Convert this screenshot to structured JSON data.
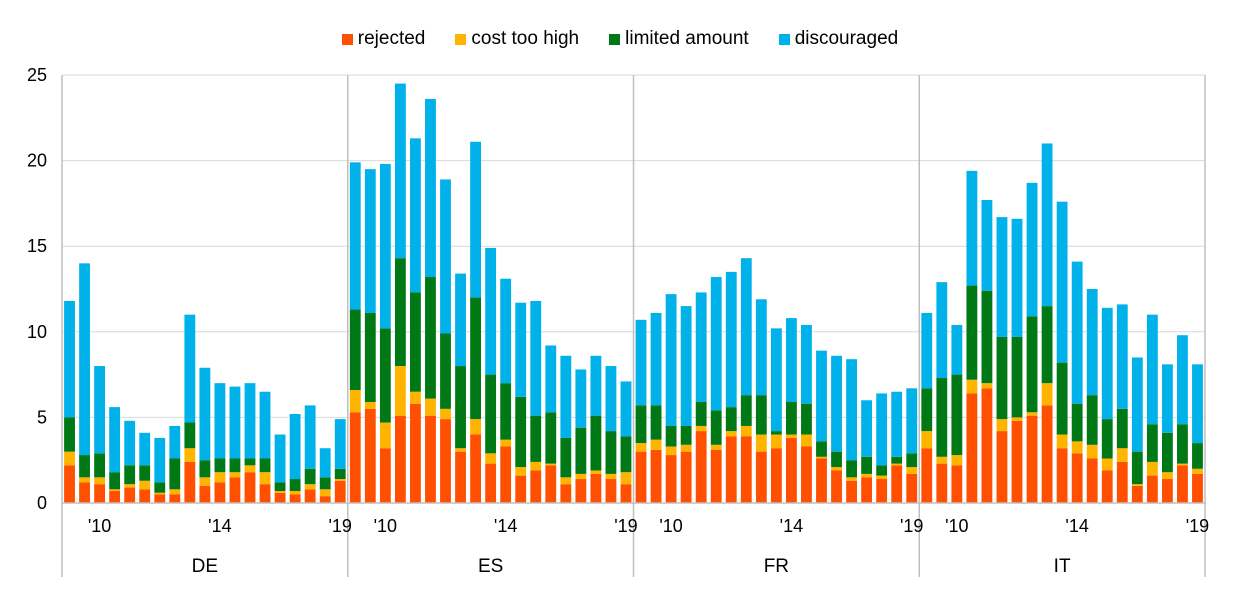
{
  "chart_data": {
    "type": "bar",
    "stacked": true,
    "ylim": [
      0,
      25
    ],
    "yticks": [
      "0",
      "5",
      "10",
      "15",
      "20",
      "25"
    ],
    "grid": true,
    "legend_position": "top-center",
    "series": [
      {
        "name": "rejected",
        "color": "#ff4f00"
      },
      {
        "name": "cost too high",
        "color": "#ffb400"
      },
      {
        "name": "limited amount",
        "color": "#007816"
      },
      {
        "name": "discouraged",
        "color": "#00b1ea"
      }
    ],
    "panels": [
      {
        "name": "DE",
        "tick_labels": [
          {
            "index": 2,
            "label": "'10"
          },
          {
            "index": 10,
            "label": "'14"
          },
          {
            "index": 18,
            "label": "'19"
          }
        ],
        "values": {
          "rejected": [
            2.2,
            1.2,
            1.1,
            0.7,
            0.9,
            0.8,
            0.5,
            0.5,
            2.4,
            1.0,
            1.2,
            1.5,
            1.8,
            1.1,
            0.6,
            0.5,
            0.8,
            0.4,
            1.3
          ],
          "cost too high": [
            0.8,
            0.3,
            0.4,
            0.1,
            0.2,
            0.5,
            0.1,
            0.3,
            0.8,
            0.5,
            0.6,
            0.3,
            0.4,
            0.7,
            0.1,
            0.2,
            0.3,
            0.4,
            0.1
          ],
          "limited amount": [
            2.0,
            1.3,
            1.4,
            1.0,
            1.1,
            0.9,
            0.6,
            1.8,
            1.5,
            1.0,
            0.8,
            0.8,
            0.4,
            0.8,
            0.5,
            0.7,
            0.9,
            0.7,
            0.6
          ],
          "discouraged": [
            6.8,
            11.2,
            5.1,
            3.8,
            2.6,
            1.9,
            2.6,
            1.9,
            6.3,
            5.4,
            4.4,
            4.2,
            4.4,
            3.9,
            2.8,
            3.8,
            3.7,
            1.7,
            2.9
          ]
        }
      },
      {
        "name": "ES",
        "tick_labels": [
          {
            "index": 2,
            "label": "'10"
          },
          {
            "index": 10,
            "label": "'14"
          },
          {
            "index": 18,
            "label": "'19"
          }
        ],
        "values": {
          "rejected": [
            5.3,
            5.5,
            3.2,
            5.1,
            5.8,
            5.1,
            4.9,
            3.0,
            4.0,
            2.3,
            3.3,
            1.6,
            1.9,
            2.2,
            1.1,
            1.4,
            1.7,
            1.4,
            1.1
          ],
          "cost too high": [
            1.3,
            0.4,
            1.5,
            2.9,
            0.7,
            1.0,
            0.6,
            0.2,
            0.9,
            0.6,
            0.4,
            0.5,
            0.5,
            0.1,
            0.4,
            0.3,
            0.2,
            0.3,
            0.7
          ],
          "limited amount": [
            4.7,
            5.2,
            5.5,
            6.3,
            5.8,
            7.1,
            4.4,
            4.8,
            7.1,
            4.6,
            3.3,
            4.1,
            2.7,
            3.0,
            2.3,
            2.7,
            3.2,
            2.5,
            2.1
          ],
          "discouraged": [
            8.6,
            8.4,
            9.6,
            10.2,
            9.0,
            10.4,
            9.0,
            5.4,
            9.1,
            7.4,
            6.1,
            5.5,
            6.7,
            3.9,
            4.8,
            3.4,
            3.5,
            3.8,
            3.2
          ]
        }
      },
      {
        "name": "FR",
        "tick_labels": [
          {
            "index": 2,
            "label": "'10"
          },
          {
            "index": 10,
            "label": "'14"
          },
          {
            "index": 18,
            "label": "'19"
          }
        ],
        "values": {
          "rejected": [
            3.0,
            3.1,
            2.8,
            3.0,
            4.2,
            3.1,
            3.9,
            3.9,
            3.0,
            3.2,
            3.8,
            3.3,
            2.6,
            1.9,
            1.3,
            1.5,
            1.4,
            2.2,
            1.7
          ],
          "cost too high": [
            0.5,
            0.6,
            0.5,
            0.4,
            0.3,
            0.3,
            0.3,
            0.6,
            1.0,
            0.8,
            0.2,
            0.7,
            0.1,
            0.2,
            0.2,
            0.2,
            0.2,
            0.1,
            0.4
          ],
          "limited amount": [
            2.2,
            2.0,
            1.2,
            1.1,
            1.4,
            2.0,
            1.4,
            1.8,
            2.3,
            0.2,
            1.9,
            1.8,
            0.9,
            0.9,
            1.0,
            1.0,
            0.6,
            0.4,
            0.8
          ],
          "discouraged": [
            5.0,
            5.4,
            7.7,
            7.0,
            6.4,
            7.8,
            7.9,
            8.0,
            5.6,
            6.0,
            4.9,
            4.6,
            5.3,
            5.6,
            5.9,
            3.3,
            4.2,
            3.8,
            3.8
          ]
        }
      },
      {
        "name": "IT",
        "tick_labels": [
          {
            "index": 2,
            "label": "'10"
          },
          {
            "index": 10,
            "label": "'14"
          },
          {
            "index": 18,
            "label": "'19"
          }
        ],
        "values": {
          "rejected": [
            3.2,
            2.3,
            2.2,
            6.4,
            6.7,
            4.2,
            4.8,
            5.1,
            5.7,
            3.2,
            2.9,
            2.6,
            1.9,
            2.4,
            1.0,
            1.6,
            1.4,
            2.2,
            1.7
          ],
          "cost too high": [
            1.0,
            0.4,
            0.6,
            0.8,
            0.3,
            0.7,
            0.2,
            0.2,
            1.3,
            0.8,
            0.7,
            0.8,
            0.7,
            0.8,
            0.1,
            0.8,
            0.4,
            0.1,
            0.3
          ],
          "limited amount": [
            2.5,
            4.6,
            4.7,
            5.5,
            5.4,
            4.8,
            4.7,
            5.6,
            4.5,
            4.2,
            2.2,
            2.9,
            2.3,
            2.3,
            1.9,
            2.2,
            2.3,
            2.3,
            1.5
          ],
          "discouraged": [
            4.4,
            5.6,
            2.9,
            6.7,
            5.3,
            7.0,
            6.9,
            7.8,
            9.5,
            9.4,
            8.3,
            6.2,
            6.5,
            6.1,
            5.5,
            6.4,
            4.0,
            5.2,
            4.6
          ]
        }
      }
    ]
  }
}
